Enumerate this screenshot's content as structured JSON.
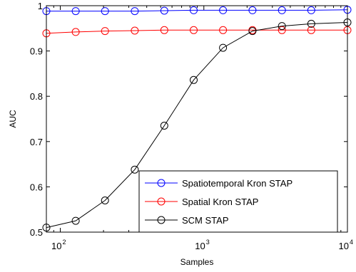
{
  "chart_data": {
    "type": "line",
    "title": "",
    "xlabel": "Samples",
    "ylabel": "AUC",
    "xscale": "log",
    "xlim": [
      80,
      10000
    ],
    "ylim": [
      0.5,
      1.0
    ],
    "grid": false,
    "legend_position": "bottom-right",
    "x": [
      80,
      128,
      205,
      330,
      530,
      850,
      1360,
      2180,
      3500,
      5600,
      10000
    ],
    "x_ticks": [
      {
        "value": 100,
        "base": "10",
        "exp": "2"
      },
      {
        "value": 1000,
        "base": "10",
        "exp": "3"
      },
      {
        "value": 10000,
        "base": "10",
        "exp": "4"
      }
    ],
    "y_ticks": [
      {
        "value": 0.5,
        "label": "0.5"
      },
      {
        "value": 0.6,
        "label": "0.6"
      },
      {
        "value": 0.7,
        "label": "0.7"
      },
      {
        "value": 0.8,
        "label": "0.8"
      },
      {
        "value": 0.9,
        "label": "0.9"
      },
      {
        "value": 1.0,
        "label": "1"
      }
    ],
    "series": [
      {
        "name": "Spatiotemporal Kron STAP",
        "color": "#0000ff",
        "values": [
          0.988,
          0.988,
          0.988,
          0.988,
          0.989,
          0.99,
          0.99,
          0.99,
          0.99,
          0.99,
          0.991
        ]
      },
      {
        "name": "Spatial Kron STAP",
        "color": "#ff0000",
        "values": [
          0.939,
          0.942,
          0.944,
          0.945,
          0.946,
          0.946,
          0.946,
          0.946,
          0.946,
          0.946,
          0.946
        ]
      },
      {
        "name": "SCM STAP",
        "color": "#000000",
        "values": [
          0.51,
          0.525,
          0.57,
          0.638,
          0.735,
          0.836,
          0.907,
          0.944,
          0.955,
          0.96,
          0.963
        ]
      }
    ]
  }
}
